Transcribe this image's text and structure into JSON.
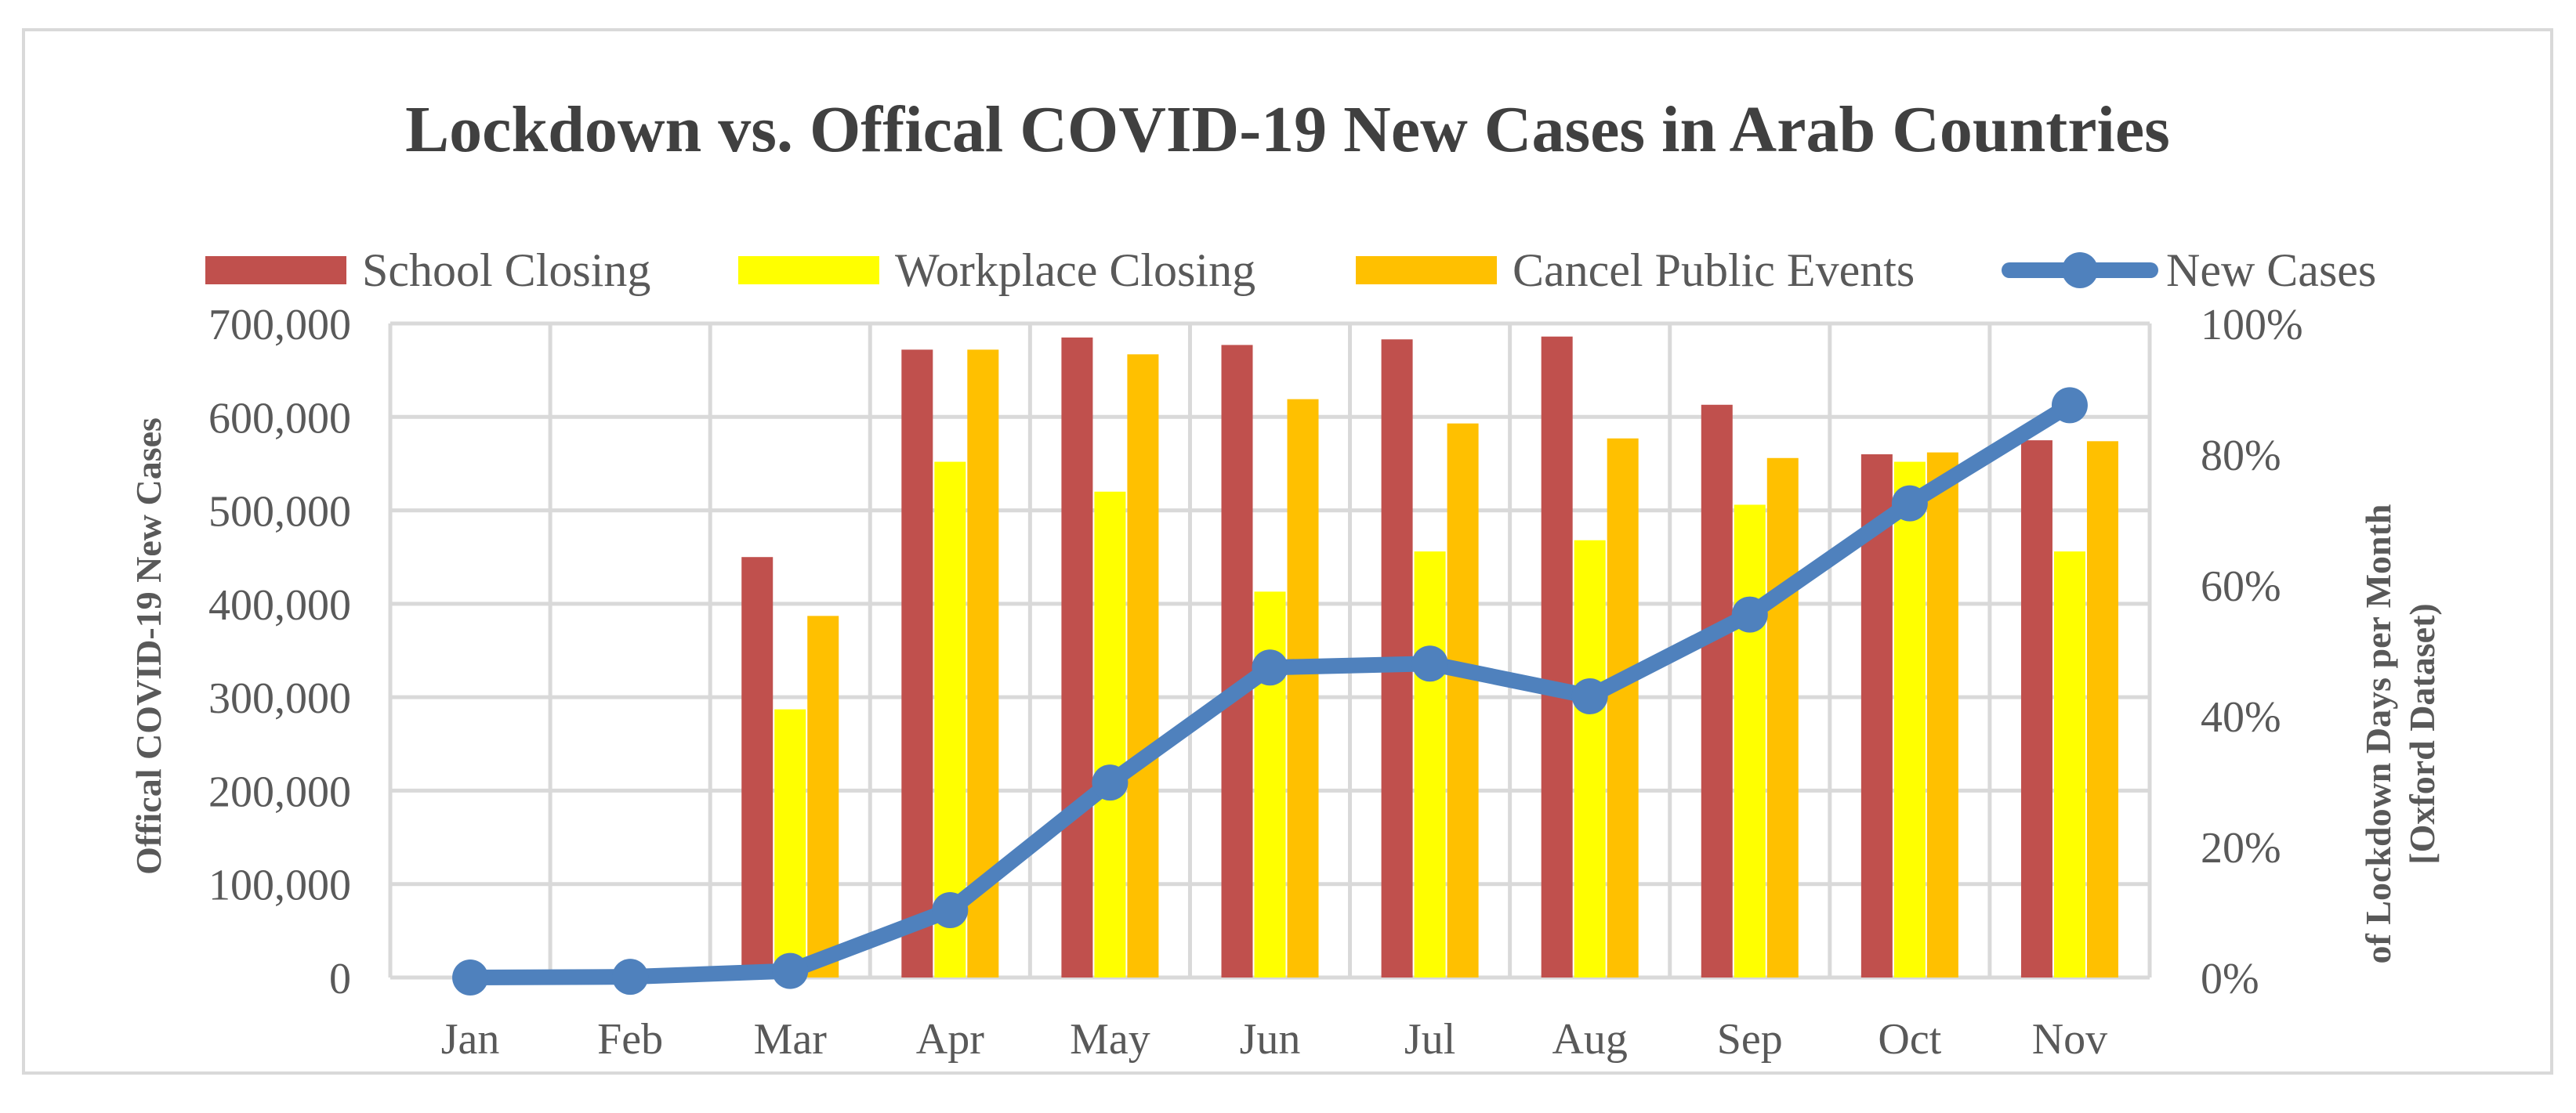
{
  "chart_data": {
    "type": "bar",
    "title": "Lockdown vs. Offical COVID-19 New Cases in Arab Countries",
    "categories": [
      "Jan",
      "Feb",
      "Mar",
      "Apr",
      "May",
      "Jun",
      "Jul",
      "Aug",
      "Sep",
      "Oct",
      "Nov"
    ],
    "series": [
      {
        "name": "School Closing",
        "type": "bar",
        "axis": "left",
        "color": "#c0504d",
        "values": [
          0,
          0,
          450000,
          672000,
          685000,
          677000,
          683000,
          686000,
          613000,
          560000,
          575000
        ]
      },
      {
        "name": "Workplace Closing",
        "type": "bar",
        "axis": "left",
        "color": "#ffff00",
        "values": [
          0,
          0,
          287000,
          552000,
          520000,
          413000,
          456000,
          468000,
          506000,
          552000,
          456000
        ]
      },
      {
        "name": "Cancel Public Events",
        "type": "bar",
        "axis": "left",
        "color": "#ffc000",
        "values": [
          0,
          0,
          387000,
          672000,
          667000,
          619000,
          593000,
          577000,
          556000,
          562000,
          574000
        ]
      },
      {
        "name": "New Cases",
        "type": "line",
        "axis": "right",
        "color": "#4f81bd",
        "values": [
          0.0,
          0.001,
          0.01,
          0.103,
          0.298,
          0.474,
          0.48,
          0.43,
          0.555,
          0.725,
          0.875
        ]
      }
    ],
    "ylabel": "Offical COVID-19 New Cases",
    "ylabel_right": "of Lockdown Days per Month [Oxford Dataset)",
    "ylim": [
      0,
      700000
    ],
    "ylim_right": [
      0,
      1
    ],
    "yticks": [
      "0",
      "100,000",
      "200,000",
      "300,000",
      "400,000",
      "500,000",
      "600,000",
      "700,000"
    ],
    "yticks_right": [
      "0%",
      "20%",
      "40%",
      "60%",
      "80%",
      "100%"
    ],
    "legend_position": "top",
    "grid": true
  }
}
